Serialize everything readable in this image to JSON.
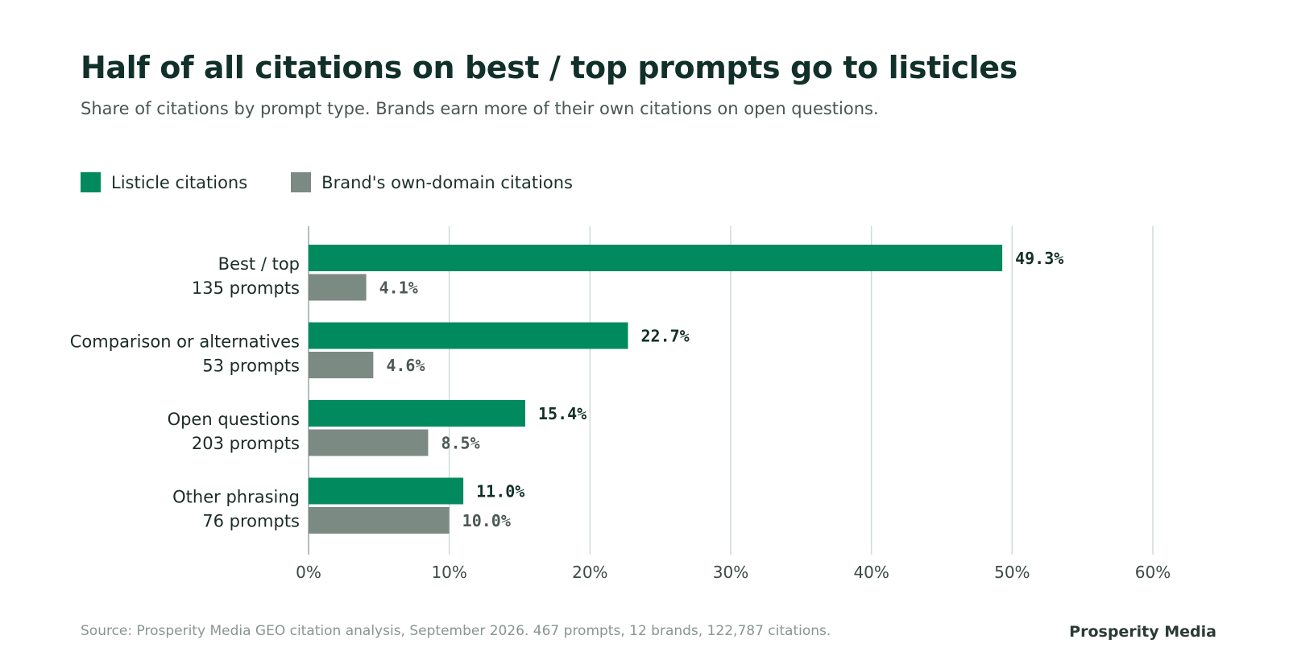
{
  "colors": {
    "listicle": "#008a5e",
    "own_domain": "#7c8a84",
    "grid": "#cfdcd8",
    "text": "#12302a"
  },
  "chart_data": {
    "type": "bar",
    "orientation": "horizontal",
    "title": "Half of all citations on best / top prompts go to listicles",
    "subtitle": "Share of citations by prompt type. Brands earn more of their own citations on open questions.",
    "legend_position": "top-left",
    "grid": true,
    "xlim": [
      0,
      60
    ],
    "xticks": [
      "0%",
      "10%",
      "20%",
      "30%",
      "40%",
      "50%",
      "60%"
    ],
    "xtick_values": [
      0,
      10,
      20,
      30,
      40,
      50,
      60
    ],
    "categories": [
      {
        "name": "Best / top",
        "sub": "135 prompts"
      },
      {
        "name": "Comparison or alternatives",
        "sub": "53 prompts"
      },
      {
        "name": "Open questions",
        "sub": "203 prompts"
      },
      {
        "name": "Other phrasing",
        "sub": "76 prompts"
      }
    ],
    "series": [
      {
        "name": "Listicle citations",
        "values": [
          49.3,
          22.7,
          15.4,
          11.0
        ],
        "labels": [
          "49.3%",
          "22.7%",
          "15.4%",
          "11.0%"
        ]
      },
      {
        "name": "Brand's own-domain citations",
        "values": [
          4.1,
          4.6,
          8.5,
          10.0
        ],
        "labels": [
          "4.1%",
          "4.6%",
          "8.5%",
          "10.0%"
        ]
      }
    ]
  },
  "footer": {
    "source": "Source: Prosperity Media GEO citation analysis, September 2026. 467 prompts, 12 brands, 122,787 citations.",
    "brand": "Prosperity Media"
  }
}
